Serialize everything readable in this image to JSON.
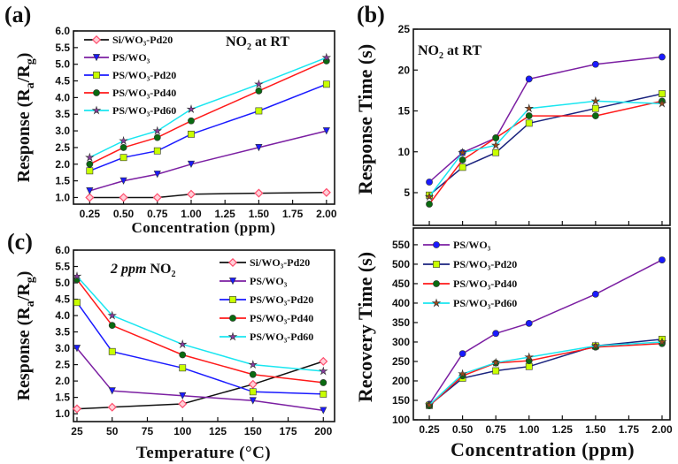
{
  "colors": {
    "purple": "#7b1fa2",
    "blue": "#1a1aff",
    "navy": "#1a237e",
    "red": "#ff1a1a",
    "cyan": "#1ae6f0",
    "black": "#111111",
    "yellow": "#c8ff00",
    "green": "#0a6a10",
    "pink": "#ff4d6d",
    "brown": "#9c4a1a",
    "violet": "#8a3aa0"
  },
  "chart_data": [
    {
      "id": "a",
      "panel_label": "(a)",
      "type": "line",
      "annotation": [
        "NO",
        "2",
        " at RT"
      ],
      "xlabel": "Concentration (ppm)",
      "ylabel": [
        "Response (R",
        "a",
        "/R",
        "g",
        ")"
      ],
      "xlim": [
        0.13,
        2.06
      ],
      "ylim": [
        0.8,
        6.0
      ],
      "xticks": [
        "0.25",
        "0.50",
        "0.75",
        "1.00",
        "1.25",
        "1.50",
        "1.75",
        "2.00"
      ],
      "yticks": [
        "1.0",
        "1.5",
        "2.0",
        "2.5",
        "3.0",
        "3.5",
        "4.0",
        "4.5",
        "5.0",
        "5.5",
        "6.0"
      ],
      "x": [
        0.25,
        0.5,
        0.75,
        1.0,
        1.5,
        2.0
      ],
      "legend": "top-left",
      "series": [
        {
          "name": "Si/WO₃-Pd20",
          "line": "black",
          "marker": "diamond",
          "mcolor": "pink",
          "values": [
            1.0,
            1.0,
            1.0,
            1.1,
            1.13,
            1.15
          ]
        },
        {
          "name": "PS/WO₃",
          "line": "purple",
          "marker": "tri",
          "mcolor": "blue",
          "values": [
            1.2,
            1.5,
            1.7,
            2.0,
            2.5,
            3.0
          ]
        },
        {
          "name": "PS/WO₃-Pd20",
          "line": "blue",
          "marker": "square",
          "mcolor": "yellow",
          "values": [
            1.8,
            2.2,
            2.4,
            2.9,
            3.6,
            4.4
          ]
        },
        {
          "name": "PS/WO₃-Pd40",
          "line": "red",
          "marker": "circle",
          "mcolor": "green",
          "values": [
            2.0,
            2.5,
            2.8,
            3.3,
            4.2,
            5.1
          ]
        },
        {
          "name": "PS/WO₃-Pd60",
          "line": "cyan",
          "marker": "star",
          "mcolor": "violet",
          "values": [
            2.2,
            2.7,
            3.0,
            3.65,
            4.4,
            5.2
          ]
        }
      ]
    },
    {
      "id": "b",
      "panel_label": "(b)",
      "type": "line",
      "annotation": [
        "NO",
        "2",
        " at RT"
      ],
      "xlabel": "",
      "ylabel": [
        "Response Time (s)"
      ],
      "xlim": [
        0.13,
        2.06
      ],
      "ylim": [
        1,
        25
      ],
      "xticks": [],
      "yticks": [
        "5",
        "10",
        "15",
        "20",
        "25"
      ],
      "x": [
        0.25,
        0.5,
        0.75,
        1.0,
        1.5,
        2.0
      ],
      "legend": "none",
      "series": [
        {
          "name": "PS/WO₃",
          "line": "purple",
          "marker": "circle",
          "mcolor": "blue",
          "values": [
            6.3,
            9.9,
            11.7,
            18.9,
            20.7,
            21.6
          ]
        },
        {
          "name": "PS/WO₃-Pd20",
          "line": "navy",
          "marker": "square",
          "mcolor": "yellow",
          "values": [
            4.7,
            8.1,
            9.9,
            13.5,
            15.3,
            17.1
          ]
        },
        {
          "name": "PS/WO₃-Pd40",
          "line": "red",
          "marker": "circle",
          "mcolor": "green",
          "values": [
            3.6,
            9.0,
            11.7,
            14.4,
            14.4,
            16.2
          ]
        },
        {
          "name": "PS/WO₃-Pd60",
          "line": "cyan",
          "marker": "star",
          "mcolor": "brown",
          "values": [
            4.5,
            9.9,
            10.8,
            15.3,
            16.2,
            15.9
          ]
        }
      ]
    },
    {
      "id": "c",
      "panel_label": "(c)",
      "type": "line",
      "annotation_italic": "2 ppm",
      "annotation": [
        " NO",
        "2",
        ""
      ],
      "xlabel": "Temperature (°C)",
      "ylabel": [
        "Response (R",
        "a",
        "/R",
        "g",
        ")"
      ],
      "xlim": [
        22.5,
        208
      ],
      "ylim": [
        0.76,
        6.0
      ],
      "xticks": [
        "25",
        "50",
        "75",
        "100",
        "125",
        "150",
        "175",
        "200"
      ],
      "yticks": [
        "1.0",
        "1.5",
        "2.0",
        "2.5",
        "3.0",
        "3.5",
        "4.0",
        "4.5",
        "5.0",
        "5.5",
        "6.0"
      ],
      "x": [
        25,
        50,
        100,
        150,
        200
      ],
      "legend": "top-right",
      "series": [
        {
          "name": "Si/WO₃-Pd20",
          "line": "black",
          "marker": "diamond",
          "mcolor": "pink",
          "values": [
            1.15,
            1.2,
            1.3,
            1.9,
            2.6
          ]
        },
        {
          "name": "PS/WO₃",
          "line": "purple",
          "marker": "tri",
          "mcolor": "blue",
          "values": [
            3.0,
            1.7,
            1.55,
            1.4,
            1.1
          ]
        },
        {
          "name": "PS/WO₃-Pd20",
          "line": "blue",
          "marker": "square",
          "mcolor": "yellow",
          "values": [
            4.4,
            2.9,
            2.4,
            1.67,
            1.6
          ]
        },
        {
          "name": "PS/WO₃-Pd40",
          "line": "red",
          "marker": "circle",
          "mcolor": "green",
          "values": [
            5.1,
            3.7,
            2.8,
            2.2,
            1.95
          ]
        },
        {
          "name": "PS/WO₃-Pd60",
          "line": "cyan",
          "marker": "star",
          "mcolor": "violet",
          "values": [
            5.2,
            4.0,
            3.12,
            2.5,
            2.3
          ]
        }
      ]
    },
    {
      "id": "d",
      "panel_label": "",
      "type": "line",
      "xlabel": "Concentration (ppm)",
      "ylabel": [
        "Recovery Time (s)"
      ],
      "xlim": [
        0.13,
        2.06
      ],
      "ylim": [
        100,
        593
      ],
      "xticks": [
        "0.25",
        "0.50",
        "0.75",
        "1.00",
        "1.25",
        "1.50",
        "1.75",
        "2.00"
      ],
      "yticks": [
        "100",
        "150",
        "200",
        "250",
        "300",
        "350",
        "400",
        "450",
        "500",
        "550"
      ],
      "x": [
        0.25,
        0.5,
        0.75,
        1.0,
        1.5,
        2.0
      ],
      "legend": "top-left",
      "series": [
        {
          "name": "PS/WO₃",
          "line": "purple",
          "marker": "circle",
          "mcolor": "blue",
          "values": [
            140,
            270,
            322,
            348,
            423,
            511
          ]
        },
        {
          "name": "PS/WO₃-Pd20",
          "line": "navy",
          "marker": "square",
          "mcolor": "yellow",
          "values": [
            137,
            207,
            226,
            237,
            290,
            307
          ]
        },
        {
          "name": "PS/WO₃-Pd40",
          "line": "red",
          "marker": "circle",
          "mcolor": "green",
          "values": [
            136,
            213,
            246,
            252,
            287,
            296
          ]
        },
        {
          "name": "PS/WO₃-Pd60",
          "line": "cyan",
          "marker": "star",
          "mcolor": "brown",
          "values": [
            138,
            218,
            247,
            261,
            290,
            300
          ]
        }
      ]
    }
  ]
}
